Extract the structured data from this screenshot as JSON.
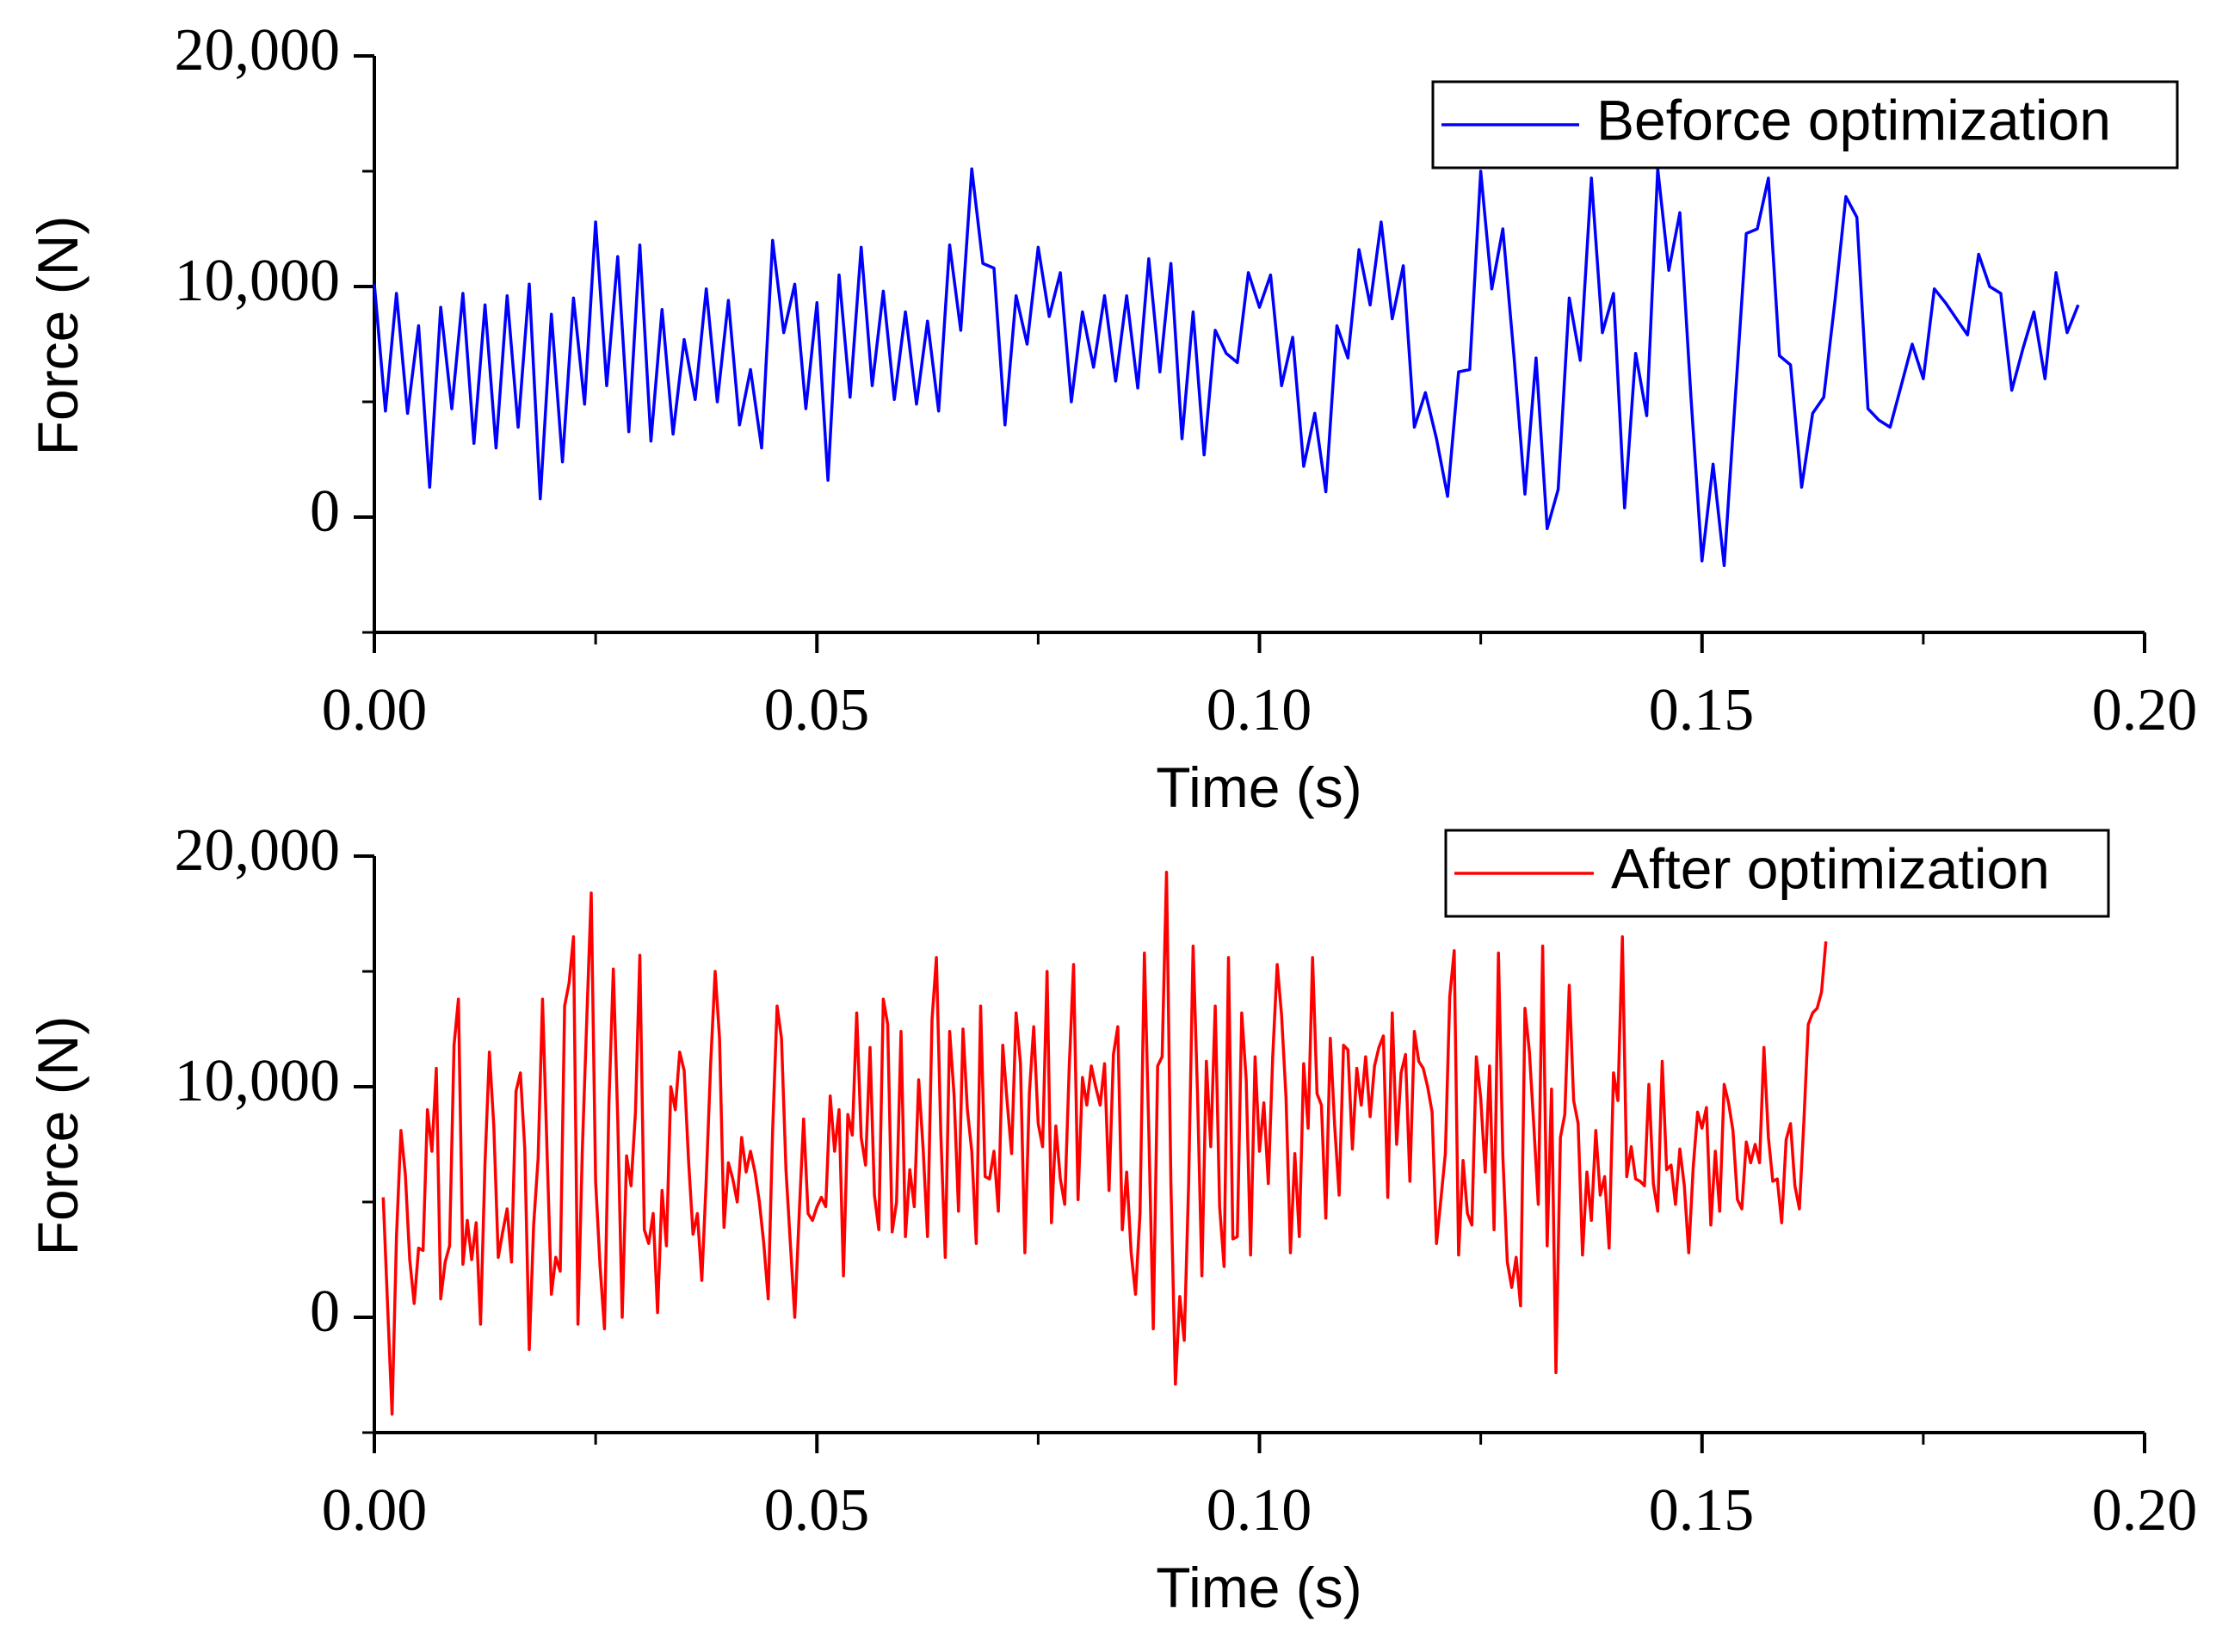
{
  "chart_data": [
    {
      "type": "line",
      "x_start": 0.0,
      "x_step": 0.00125,
      "series": [
        {
          "name": "Beforce optimization",
          "color": "#0000ff",
          "values": [
            10100,
            4600,
            9700,
            4500,
            8300,
            1300,
            9100,
            4700,
            9700,
            3200,
            9200,
            3000,
            9600,
            3900,
            10100,
            800,
            8800,
            2400,
            9500,
            4900,
            12800,
            5700,
            11300,
            3700,
            11800,
            3300,
            9000,
            3600,
            7700,
            5100,
            9900,
            5000,
            9400,
            4000,
            6400,
            3000,
            12000,
            8000,
            10100,
            4700,
            9300,
            1600,
            10500,
            5200,
            11700,
            5700,
            9800,
            5100,
            8900,
            4900,
            8500,
            4600,
            11800,
            8100,
            15100,
            11000,
            10800,
            4000,
            9600,
            7500,
            11700,
            8700,
            10600,
            5000,
            8900,
            6500,
            9600,
            5900,
            9600,
            5600,
            11200,
            6300,
            11000,
            3400,
            8900,
            2700,
            8100,
            7100,
            6700,
            10600,
            9100,
            10500,
            5700,
            7800,
            2200,
            4500,
            1100,
            8300,
            6900,
            11600,
            9200,
            12800,
            8600,
            10900,
            3900,
            5400,
            3400,
            900,
            6300,
            6400,
            15000,
            9900,
            12500,
            7000,
            1000,
            6900,
            -500,
            1200,
            9500,
            6800,
            14700,
            8000,
            9700,
            400,
            7100,
            4400,
            15100,
            10700,
            13200,
            5200,
            -1900,
            2300,
            -2100,
            5100,
            12300,
            12500,
            14700,
            7000,
            6600,
            1300,
            4500,
            5200,
            9300,
            13900,
            13000,
            4700,
            4200,
            3900,
            5700,
            7500,
            6000,
            9900,
            9300,
            8600,
            7900,
            11400,
            10000,
            9700,
            5500,
            7300,
            8900,
            6000,
            10600,
            8000,
            9200
          ]
        }
      ],
      "ylabel": "Force (N)",
      "xlabel": "Time (s)",
      "xlim": [
        0.0,
        0.2
      ],
      "ylim": [
        -5000,
        20000
      ],
      "x_ticks": [
        "0.00",
        "0.05",
        "0.10",
        "0.15",
        "0.20"
      ],
      "y_ticks": [
        "0",
        "10,000",
        "20,000"
      ],
      "legend_position": "top-right",
      "grid": false
    },
    {
      "type": "line",
      "x_start": 0.001,
      "x_step": 0.0005,
      "series": [
        {
          "name": "After optimization",
          "color": "#ff0000",
          "values": [
            5200,
            500,
            -4200,
            3500,
            8100,
            6200,
            2500,
            600,
            3000,
            2900,
            9000,
            7200,
            10800,
            800,
            2400,
            3100,
            11800,
            13800,
            2300,
            4200,
            2500,
            4100,
            -300,
            6700,
            11500,
            8300,
            2600,
            3700,
            4700,
            2400,
            9800,
            10600,
            7300,
            -1400,
            4000,
            6900,
            13800,
            7300,
            1000,
            2600,
            2000,
            13500,
            14500,
            16500,
            -300,
            7300,
            12900,
            18400,
            5900,
            2200,
            -500,
            9300,
            15100,
            8600,
            0,
            7000,
            5700,
            8900,
            15700,
            3800,
            3200,
            4500,
            200,
            5500,
            3100,
            10000,
            9000,
            11500,
            10700,
            6800,
            3600,
            4500,
            1600,
            6000,
            11000,
            15000,
            12100,
            3900,
            6700,
            6000,
            5000,
            7800,
            6300,
            7200,
            6300,
            5000,
            3200,
            800,
            8100,
            13500,
            12100,
            6400,
            3200,
            0,
            4500,
            8600,
            4500,
            4200,
            4800,
            5200,
            4800,
            9600,
            7200,
            9000,
            1800,
            8800,
            7900,
            13200,
            7800,
            6600,
            11700,
            5300,
            3800,
            13800,
            12700,
            3700,
            5000,
            12400,
            3500,
            6400,
            4800,
            10300,
            7300,
            3500,
            12900,
            15600,
            8000,
            2600,
            12400,
            9600,
            4600,
            12500,
            9000,
            7200,
            3200,
            13500,
            6100,
            6000,
            7200,
            4600,
            11800,
            9300,
            7100,
            13200,
            11000,
            2800,
            9700,
            12600,
            8400,
            7400,
            15000,
            4100,
            8300,
            6000,
            4900,
            10800,
            15300,
            5100,
            10400,
            9200,
            10900,
            10000,
            9200,
            11000,
            5500,
            11400,
            12600,
            3800,
            6300,
            2800,
            1000,
            4500,
            15800,
            8100,
            -500,
            10900,
            11300,
            19300,
            5800,
            -2900,
            900,
            -1000,
            5800,
            16100,
            9700,
            1800,
            11100,
            7400,
            13500,
            4800,
            2200,
            15600,
            3400,
            3500,
            13200,
            10300,
            2700,
            11300,
            7200,
            9300,
            5800,
            11300,
            15300,
            13100,
            9500,
            2800,
            7100,
            3500,
            11000,
            8200,
            15600,
            9700,
            9200,
            4300,
            12100,
            8300,
            5300,
            11800,
            11600,
            7300,
            10800,
            9200,
            11300,
            8700,
            10900,
            11700,
            12200,
            5200,
            13200,
            7500,
            10600,
            11400,
            5900,
            12400,
            11100,
            10800,
            10000,
            8900,
            3200,
            5100,
            7100,
            13900,
            15900,
            2700,
            6800,
            4500,
            4000,
            11300,
            9500,
            6300,
            10900,
            3800,
            15800,
            7000,
            2400,
            1300,
            2600,
            500,
            13400,
            11500,
            8300,
            4900,
            16100,
            3100,
            9900,
            -2400,
            7800,
            8800,
            14400,
            9400,
            8400,
            2700,
            6300,
            4200,
            8100,
            5300,
            6100,
            3000,
            10600,
            9400,
            16500,
            6100,
            7400,
            6000,
            5900,
            5700,
            10100,
            5800,
            4600,
            11100,
            6400,
            6600,
            4900,
            7300,
            5700,
            2800,
            6500,
            8900,
            8200,
            9100,
            4000,
            7200,
            4600,
            10100,
            9300,
            8100,
            5100,
            4700,
            7600,
            6700,
            7500,
            6700,
            11700,
            7800,
            5900,
            6000,
            4100,
            7700,
            8400,
            5700,
            4700,
            8400,
            12700,
            13200,
            13400,
            14100,
            16300
          ]
        }
      ],
      "ylabel": "Force (N)",
      "xlabel": "Time (s)",
      "xlim": [
        0.0,
        0.2
      ],
      "ylim": [
        -5000,
        20000
      ],
      "x_ticks": [
        "0.00",
        "0.05",
        "0.10",
        "0.15",
        "0.20"
      ],
      "y_ticks": [
        "0",
        "10,000",
        "20,000"
      ],
      "legend_position": "top-right",
      "grid": false
    }
  ]
}
